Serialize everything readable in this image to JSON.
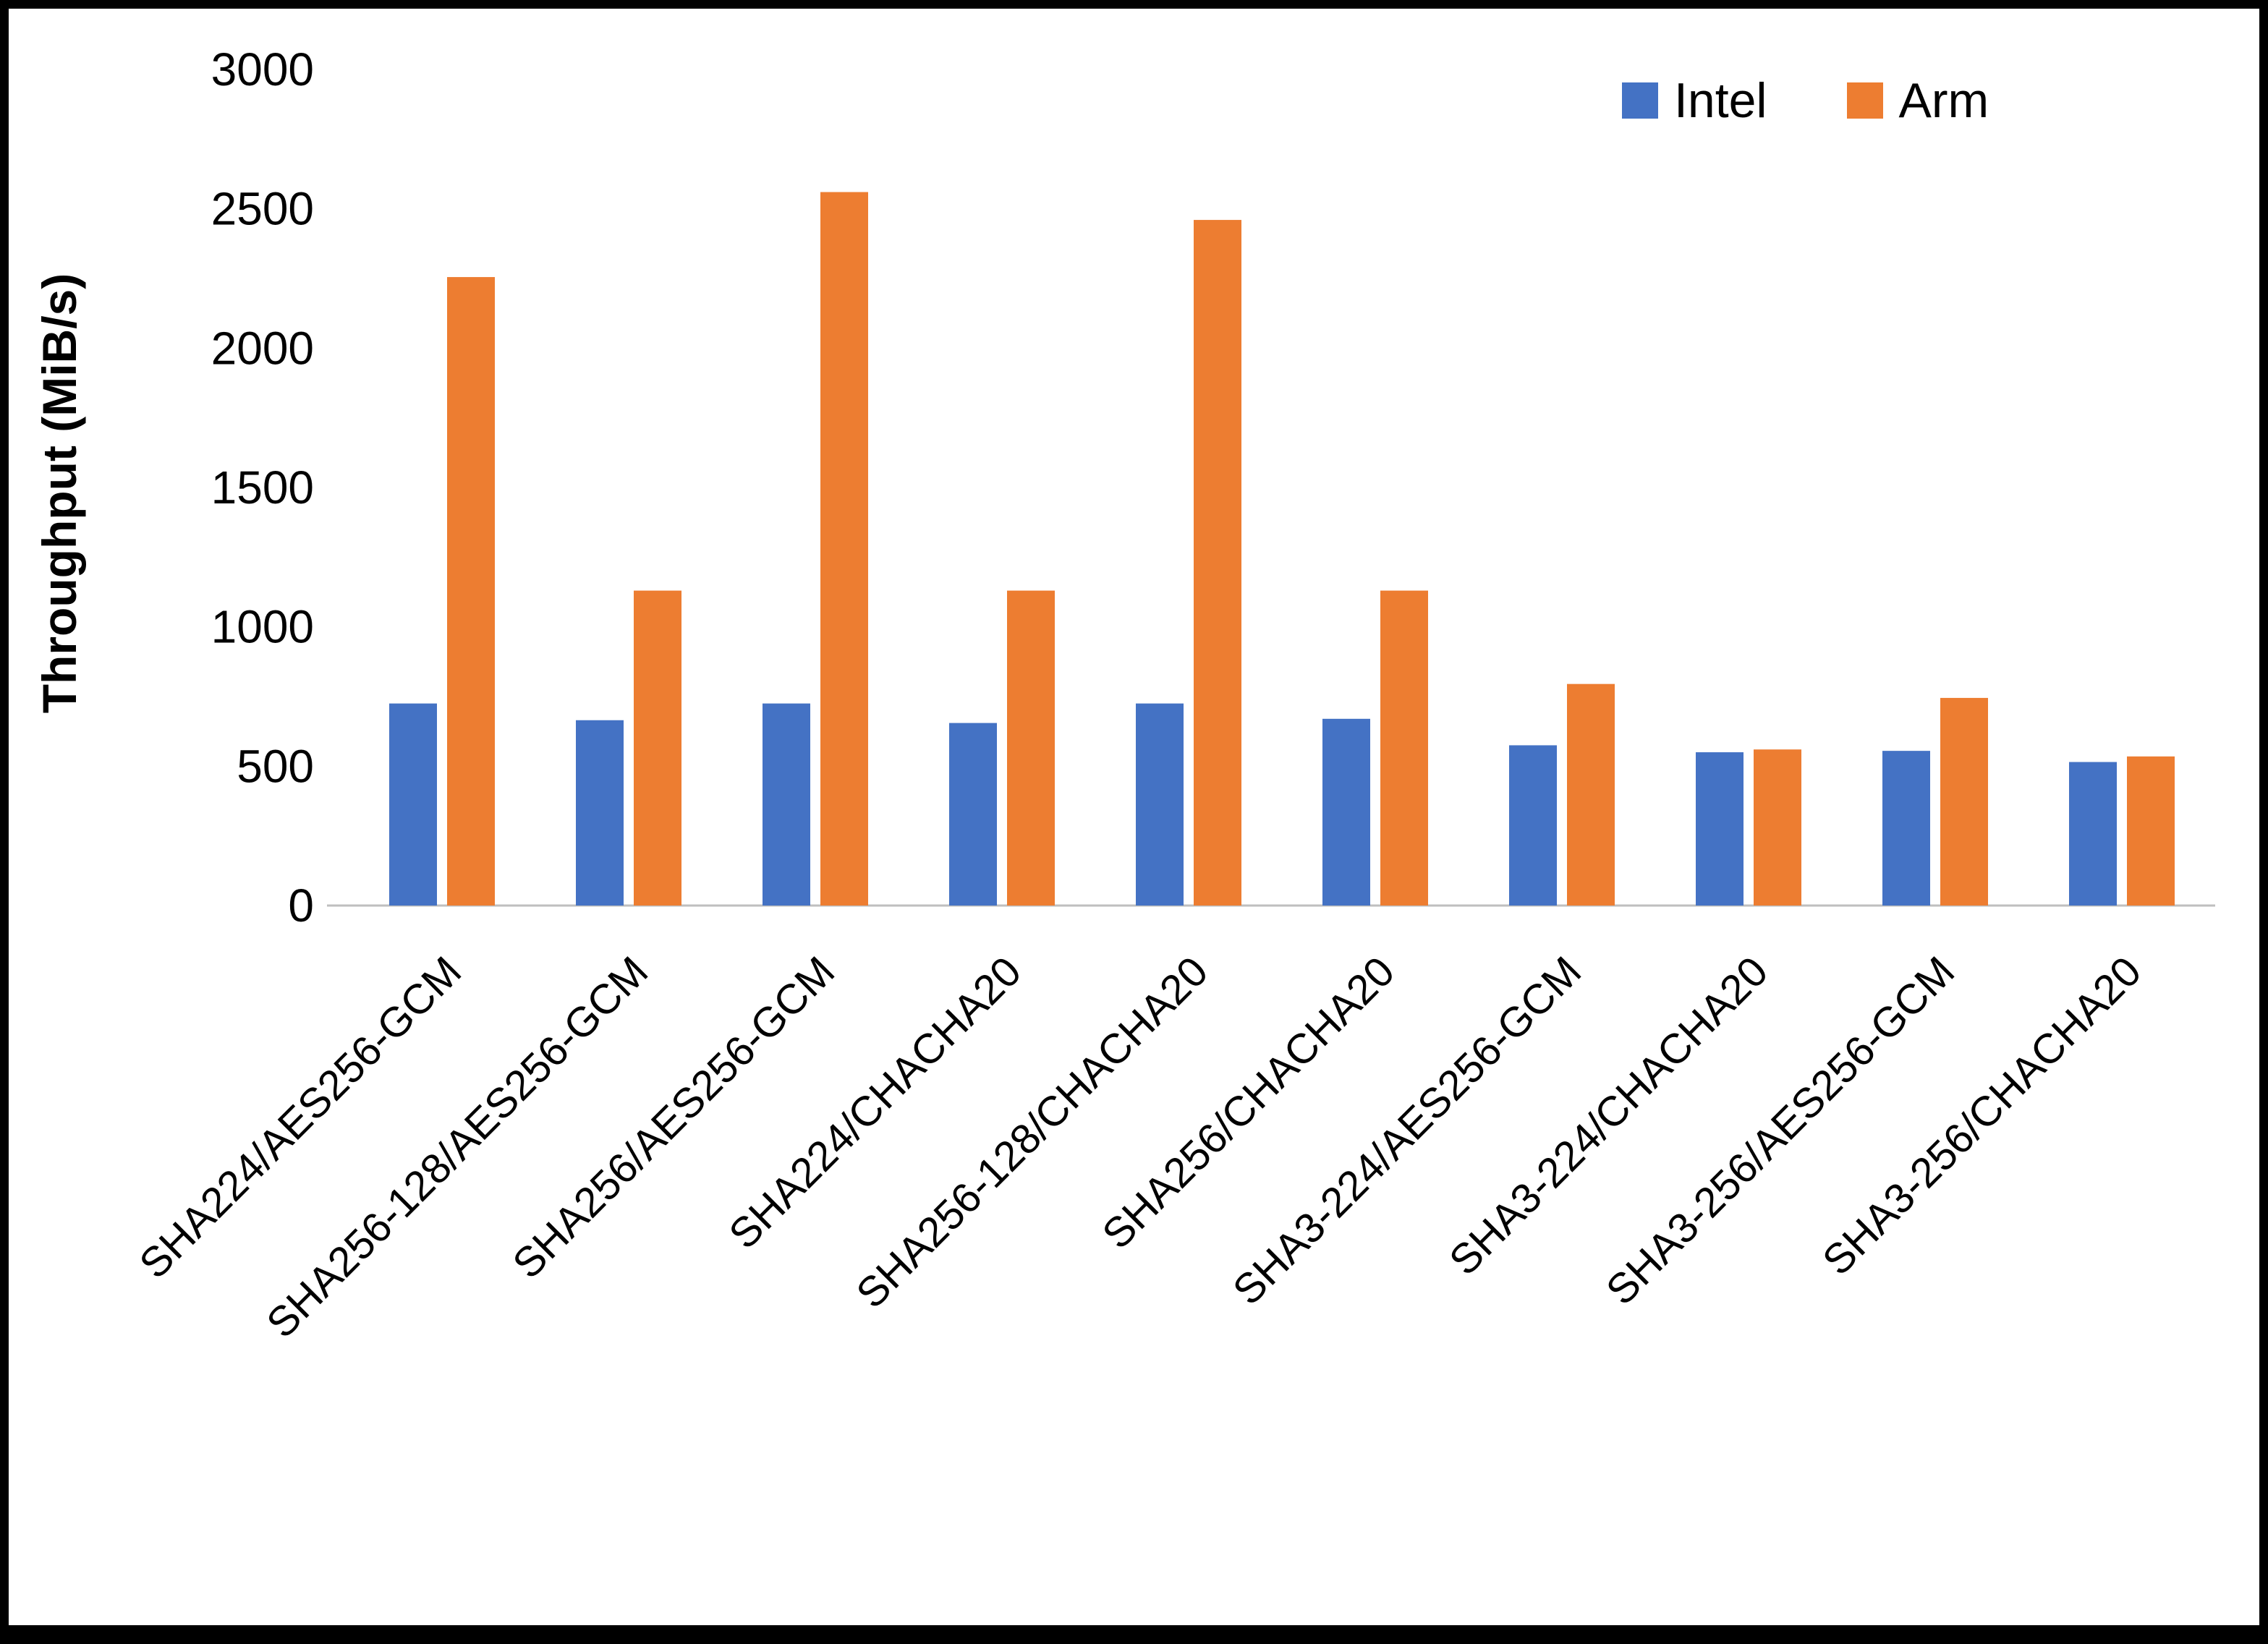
{
  "chart_data": {
    "type": "bar",
    "title": "",
    "xlabel": "",
    "ylabel": "Throughput (MiB/s)",
    "ylim": [
      0,
      3000
    ],
    "ytick_step": 500,
    "grid": false,
    "legend_position": "top-right",
    "categories": [
      "SHA224/AES256-GCM",
      "SHA256-128/AES256-GCM",
      "SHA256/AES256-GCM",
      "SHA224/CHACHA20",
      "SHA256-128/CHACHA20",
      "SHA256/CHACHA20",
      "SHA3-224/AES256-GCM",
      "SHA3-224/CHACHA20",
      "SHA3-256/AES256-GCM",
      "SHA3-256/CHACHA20"
    ],
    "series": [
      {
        "name": "Intel",
        "color": "#4472C4",
        "values": [
          725,
          665,
          725,
          655,
          725,
          670,
          575,
          550,
          555,
          515
        ]
      },
      {
        "name": "Arm",
        "color": "#ED7D31",
        "values": [
          2255,
          1130,
          2560,
          1130,
          2460,
          1130,
          795,
          560,
          745,
          535
        ]
      }
    ]
  }
}
